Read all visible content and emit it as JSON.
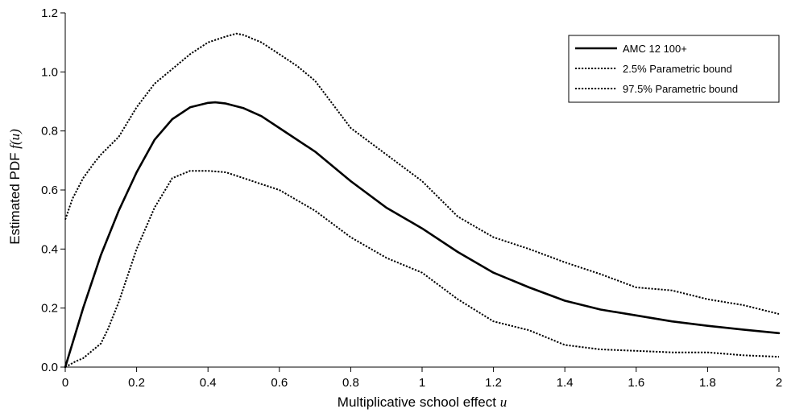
{
  "chart_data": {
    "type": "line",
    "xlabel": "Multiplicative school effect",
    "xlabel_var": "u",
    "ylabel": "Estimated PDF",
    "ylabel_var": "f(u)",
    "xlim": [
      0,
      2
    ],
    "ylim": [
      0,
      1.2
    ],
    "x_ticks": [
      0,
      0.2,
      0.4,
      0.6,
      0.8,
      1,
      1.2,
      1.4,
      1.6,
      1.8,
      2
    ],
    "x_tick_labels": [
      "0",
      "0.2",
      "0.4",
      "0.6",
      "0.8",
      "1",
      "1.2",
      "1.4",
      "1.6",
      "1.8",
      "2"
    ],
    "y_ticks": [
      0,
      0.2,
      0.4,
      0.6,
      0.8,
      1.0,
      1.2
    ],
    "y_tick_labels": [
      "0.0",
      "0.2",
      "0.4",
      "0.6",
      "0.8",
      "1.0",
      "1.2"
    ],
    "grid": false,
    "legend_position": "top-right",
    "series": [
      {
        "name": "AMC 12 100+",
        "style": "solid",
        "color": "#000000",
        "x": [
          0,
          0.02,
          0.05,
          0.1,
          0.15,
          0.2,
          0.25,
          0.3,
          0.35,
          0.4,
          0.42,
          0.45,
          0.5,
          0.55,
          0.6,
          0.7,
          0.8,
          0.9,
          1.0,
          1.1,
          1.2,
          1.3,
          1.4,
          1.5,
          1.6,
          1.7,
          1.8,
          1.9,
          2.0
        ],
        "y": [
          0,
          0.08,
          0.2,
          0.38,
          0.53,
          0.66,
          0.77,
          0.84,
          0.88,
          0.895,
          0.897,
          0.893,
          0.877,
          0.85,
          0.81,
          0.73,
          0.63,
          0.54,
          0.47,
          0.39,
          0.32,
          0.27,
          0.225,
          0.195,
          0.175,
          0.155,
          0.14,
          0.127,
          0.115
        ]
      },
      {
        "name": "2.5% Parametric bound",
        "style": "dotted",
        "color": "#000000",
        "x": [
          0,
          0.03,
          0.05,
          0.08,
          0.1,
          0.12,
          0.15,
          0.2,
          0.25,
          0.3,
          0.35,
          0.4,
          0.45,
          0.5,
          0.55,
          0.6,
          0.7,
          0.8,
          0.9,
          1.0,
          1.1,
          1.2,
          1.3,
          1.4,
          1.5,
          1.6,
          1.7,
          1.8,
          1.9,
          2.0
        ],
        "y": [
          0,
          0.02,
          0.03,
          0.06,
          0.08,
          0.13,
          0.22,
          0.4,
          0.54,
          0.64,
          0.665,
          0.665,
          0.66,
          0.64,
          0.62,
          0.6,
          0.53,
          0.44,
          0.37,
          0.32,
          0.23,
          0.155,
          0.125,
          0.075,
          0.06,
          0.055,
          0.05,
          0.05,
          0.04,
          0.035
        ]
      },
      {
        "name": "97.5% Parametric bound",
        "style": "dotted",
        "color": "#000000",
        "x": [
          0,
          0.02,
          0.05,
          0.08,
          0.1,
          0.15,
          0.2,
          0.25,
          0.3,
          0.35,
          0.4,
          0.45,
          0.48,
          0.5,
          0.55,
          0.6,
          0.65,
          0.7,
          0.8,
          0.9,
          1.0,
          1.1,
          1.2,
          1.3,
          1.4,
          1.5,
          1.6,
          1.7,
          1.8,
          1.9,
          2.0
        ],
        "y": [
          0.5,
          0.57,
          0.64,
          0.69,
          0.72,
          0.78,
          0.88,
          0.96,
          1.01,
          1.06,
          1.1,
          1.12,
          1.13,
          1.125,
          1.1,
          1.06,
          1.02,
          0.97,
          0.81,
          0.72,
          0.63,
          0.51,
          0.44,
          0.4,
          0.355,
          0.315,
          0.27,
          0.26,
          0.23,
          0.21,
          0.18
        ]
      }
    ]
  }
}
